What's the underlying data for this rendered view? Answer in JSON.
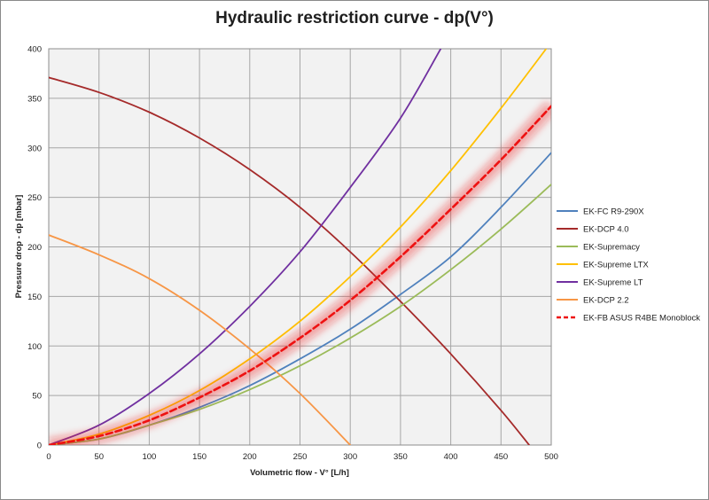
{
  "chart_data": {
    "type": "line",
    "title": "Hydraulic restriction curve - dp(V°)",
    "xlabel": "Volumetric flow - V° [L/h]",
    "ylabel": "Pressure drop - dp [mbar]",
    "xlim": [
      0,
      500
    ],
    "ylim": [
      0,
      400
    ],
    "xticks": [
      0,
      50,
      100,
      150,
      200,
      250,
      300,
      350,
      400,
      450,
      500
    ],
    "yticks": [
      0,
      50,
      100,
      150,
      200,
      250,
      300,
      350,
      400
    ],
    "grid": true,
    "legend_position": "right",
    "series": [
      {
        "name": "EK-FC R9-290X",
        "color": "#4f81bd",
        "style": "solid",
        "x": [
          0,
          50,
          100,
          150,
          200,
          250,
          300,
          350,
          400,
          450,
          500
        ],
        "y": [
          0,
          6,
          20,
          38,
          60,
          87,
          117,
          152,
          190,
          240,
          295
        ]
      },
      {
        "name": "EK-DCP 4.0",
        "color": "#a52a2a",
        "style": "solid",
        "x": [
          0,
          50,
          100,
          150,
          200,
          250,
          300,
          350,
          400,
          450,
          478
        ],
        "y": [
          371,
          356,
          336,
          310,
          278,
          240,
          195,
          145,
          92,
          35,
          0
        ]
      },
      {
        "name": "EK-Supremacy",
        "color": "#9bbb59",
        "style": "solid",
        "x": [
          0,
          50,
          100,
          150,
          200,
          250,
          300,
          350,
          400,
          450,
          500
        ],
        "y": [
          0,
          6,
          20,
          36,
          56,
          80,
          108,
          140,
          177,
          218,
          263
        ]
      },
      {
        "name": "EK-Supreme LTX",
        "color": "#ffc000",
        "style": "solid",
        "x": [
          0,
          50,
          100,
          150,
          200,
          250,
          300,
          350,
          400,
          450,
          495
        ],
        "y": [
          0,
          11,
          30,
          55,
          87,
          125,
          170,
          220,
          277,
          340,
          400
        ]
      },
      {
        "name": "EK-Supreme LT",
        "color": "#7030a0",
        "style": "solid",
        "x": [
          0,
          50,
          100,
          150,
          200,
          250,
          300,
          350,
          390
        ],
        "y": [
          0,
          20,
          52,
          92,
          140,
          195,
          260,
          330,
          400
        ]
      },
      {
        "name": "EK-DCP 2.2",
        "color": "#f79646",
        "style": "solid",
        "x": [
          0,
          50,
          100,
          150,
          200,
          250,
          300
        ],
        "y": [
          212,
          192,
          168,
          136,
          97,
          52,
          0
        ]
      },
      {
        "name": "EK-FB ASUS R4BE Monoblock",
        "color": "#ee1111",
        "style": "dashed",
        "highlight": true,
        "x": [
          0,
          50,
          100,
          150,
          200,
          250,
          300,
          350,
          400,
          450,
          500
        ],
        "y": [
          0,
          9,
          25,
          48,
          75,
          108,
          146,
          190,
          238,
          288,
          342
        ]
      }
    ]
  }
}
